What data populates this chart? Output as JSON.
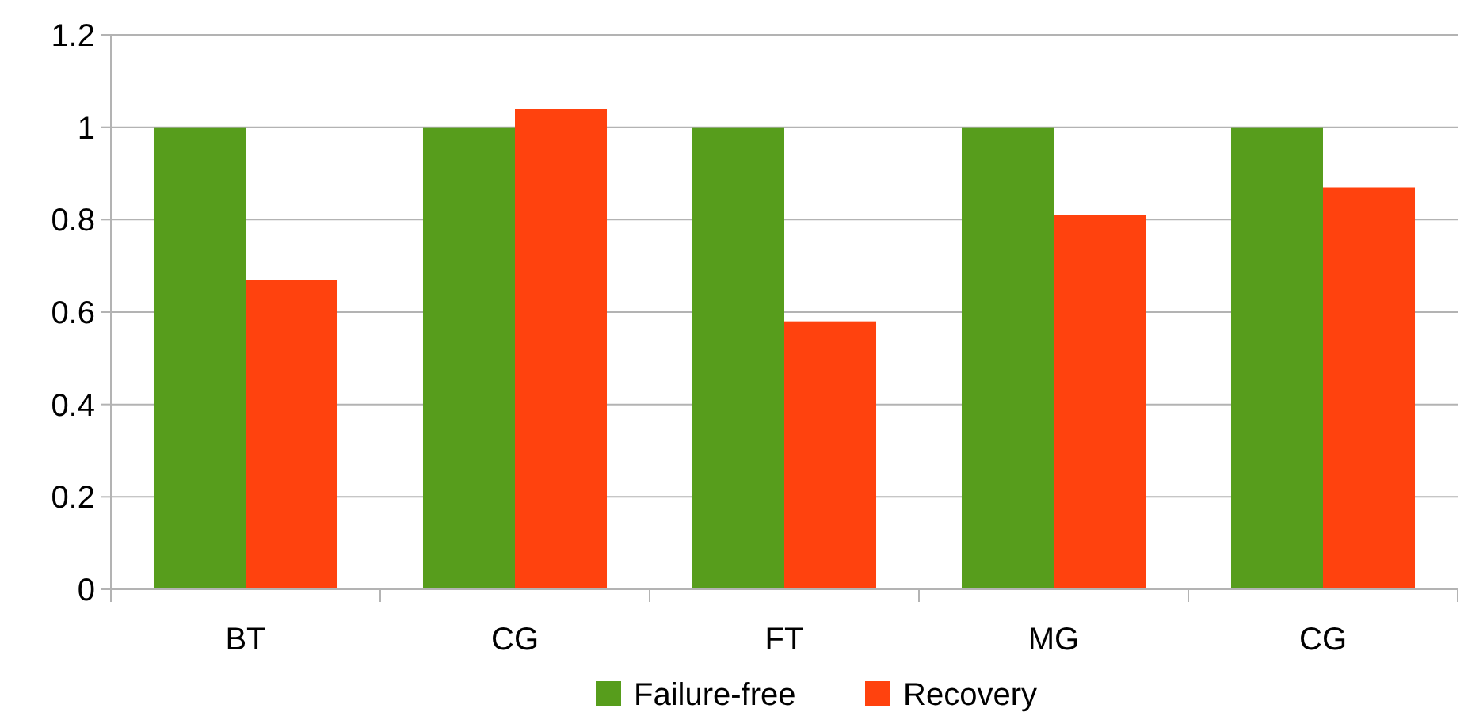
{
  "chart_data": {
    "type": "bar",
    "categories": [
      "BT",
      "CG",
      "FT",
      "MG",
      "CG"
    ],
    "series": [
      {
        "name": "Failure-free",
        "color": "#579d1c",
        "values": [
          1,
          1,
          1,
          1,
          1
        ]
      },
      {
        "name": "Recovery",
        "color": "#ff420e",
        "values": [
          0.67,
          1.04,
          0.58,
          0.81,
          0.87
        ]
      }
    ],
    "ylim": [
      0,
      1.2
    ],
    "yticks": [
      0,
      {
        "value": 0.2,
        "label": "0.2"
      },
      {
        "value": 0.4,
        "label": "0.4"
      },
      {
        "value": 0.6,
        "label": "0.6"
      },
      {
        "value": 0.8,
        "label": "0.8"
      },
      1,
      {
        "value": 1.2,
        "label": "1.2"
      }
    ],
    "grid": "y",
    "legend": "bottom"
  }
}
